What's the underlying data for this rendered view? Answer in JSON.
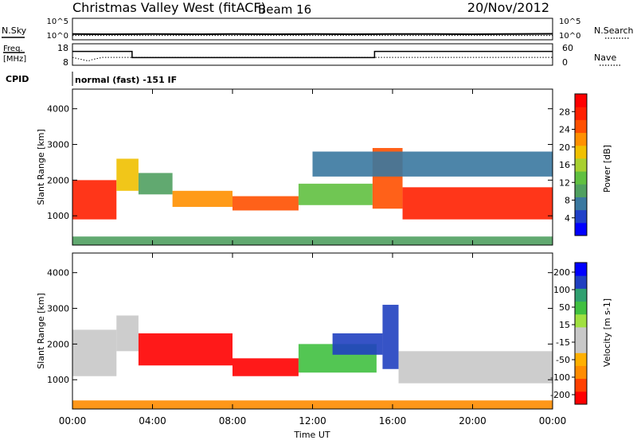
{
  "header": {
    "title": "Christmas Valley West (fitACF)",
    "beam": "Beam 16",
    "date": "20/Nov/2012"
  },
  "left_labels": {
    "nsky": "N.Sky",
    "freq_line1": "Freq.",
    "freq_line2": "[MHz]",
    "cpid": "CPID"
  },
  "right_labels": {
    "nsearch": "N.Search",
    "nave": "Nave"
  },
  "cpid_text": "normal (fast) -151 IF",
  "colors": {
    "power_scale": [
      "#0000ff",
      "#2040c8",
      "#3a78a0",
      "#50a060",
      "#60c040",
      "#a8d030",
      "#f0c000",
      "#ff9000",
      "#ff5000",
      "#ff2000",
      "#ff0000"
    ],
    "velocity_scale": [
      "#ff0000",
      "#ff4000",
      "#ff8c00",
      "#ffb000",
      "#c8c8c8",
      "#c8c8c8",
      "#a0e040",
      "#40c040",
      "#30a070",
      "#2040c0",
      "#0000ff"
    ]
  },
  "chart_data": [
    {
      "type": "line",
      "panel": "noise",
      "left_ticks": [
        "10^5",
        "10^0"
      ],
      "right_ticks": [
        "10^5",
        "10^0"
      ],
      "series": [
        {
          "name": "N.Sky",
          "style": "solid",
          "x": [
            0,
            2,
            4,
            6,
            8,
            10,
            12,
            14,
            16,
            18,
            20,
            22,
            24
          ],
          "y_log10": [
            0.6,
            0.55,
            0.6,
            0.55,
            0.6,
            0.55,
            0.6,
            0.55,
            0.6,
            0.6,
            0.55,
            0.6,
            0.65
          ]
        },
        {
          "name": "N.Search",
          "style": "dotted",
          "x": [
            0,
            24
          ],
          "y_log10": [
            0.25,
            0.25
          ]
        }
      ]
    },
    {
      "type": "line",
      "panel": "frequency",
      "left_ticks": [
        "18",
        "8"
      ],
      "right_ticks": [
        "60",
        "0"
      ],
      "series": [
        {
          "name": "Freq.",
          "style": "solid",
          "x": [
            0,
            2.98,
            2.98,
            15.1,
            15.1,
            24
          ],
          "y": [
            15,
            15,
            11,
            11,
            15,
            15
          ]
        },
        {
          "name": "Nave",
          "style": "dotted",
          "x": [
            0,
            0.3,
            0.8,
            1.0,
            1.5,
            24
          ],
          "y": [
            22,
            18,
            12,
            16,
            22,
            22
          ]
        }
      ]
    },
    {
      "type": "heatmap",
      "panel": "power",
      "title": "Power [dB]",
      "ylabel": "Slant Range [km]",
      "y_ticks": [
        "1000",
        "2000",
        "3000",
        "4000"
      ],
      "xlim": [
        0,
        24
      ],
      "ylim": [
        180,
        4550
      ],
      "colorbar": {
        "label": "Power [dB]",
        "ticks": [
          "4",
          "8",
          "12",
          "16",
          "20",
          "24",
          "28"
        ],
        "range": [
          0,
          32
        ]
      },
      "regions": [
        {
          "x0": 0.0,
          "x1": 2.2,
          "r0": 900,
          "r1": 2000,
          "level": 28
        },
        {
          "x0": 2.2,
          "x1": 3.3,
          "r0": 1700,
          "r1": 2600,
          "level": 20
        },
        {
          "x0": 3.3,
          "x1": 5.0,
          "r0": 1600,
          "r1": 2200,
          "level": 10
        },
        {
          "x0": 5.0,
          "x1": 8.0,
          "r0": 1250,
          "r1": 1700,
          "level": 22
        },
        {
          "x0": 8.0,
          "x1": 11.3,
          "r0": 1150,
          "r1": 1550,
          "level": 26
        },
        {
          "x0": 11.3,
          "x1": 15.0,
          "r0": 1300,
          "r1": 1900,
          "level": 12
        },
        {
          "x0": 15.0,
          "x1": 16.5,
          "r0": 1200,
          "r1": 2900,
          "level": 24
        },
        {
          "x0": 16.5,
          "x1": 24.0,
          "r0": 900,
          "r1": 1800,
          "level": 29
        },
        {
          "x0": 12.0,
          "x1": 24.0,
          "r0": 2100,
          "r1": 2800,
          "level": 6
        },
        {
          "x0": 0.0,
          "x1": 24.0,
          "r0": 180,
          "r1": 420,
          "level": 10
        }
      ]
    },
    {
      "type": "heatmap",
      "panel": "velocity",
      "ylabel": "Slant Range [km]",
      "xlabel": "Time UT",
      "x_ticks": [
        "00:00",
        "04:00",
        "08:00",
        "12:00",
        "16:00",
        "20:00",
        "00:00"
      ],
      "y_ticks": [
        "1000",
        "2000",
        "3000",
        "4000"
      ],
      "xlim": [
        0,
        24
      ],
      "ylim": [
        180,
        4550
      ],
      "colorbar": {
        "label": "Velocity [m s-1]",
        "ticks": [
          "200",
          "100",
          "50",
          "15",
          "-15",
          "-50",
          "-100",
          "-200"
        ]
      },
      "regions": [
        {
          "x0": 0.0,
          "x1": 2.2,
          "r0": 1100,
          "r1": 2400,
          "velocity": 0
        },
        {
          "x0": 2.2,
          "x1": 3.3,
          "r0": 1800,
          "r1": 2800,
          "velocity": 0
        },
        {
          "x0": 3.3,
          "x1": 8.0,
          "r0": 1400,
          "r1": 2300,
          "velocity": -220
        },
        {
          "x0": 8.0,
          "x1": 11.3,
          "r0": 1100,
          "r1": 1600,
          "velocity": -200
        },
        {
          "x0": 11.3,
          "x1": 15.2,
          "r0": 1200,
          "r1": 2000,
          "velocity": 40
        },
        {
          "x0": 13.0,
          "x1": 15.5,
          "r0": 1700,
          "r1": 2300,
          "velocity": 150
        },
        {
          "x0": 15.5,
          "x1": 16.3,
          "r0": 1300,
          "r1": 3100,
          "velocity": 160
        },
        {
          "x0": 16.3,
          "x1": 24.0,
          "r0": 900,
          "r1": 1800,
          "velocity": 0
        },
        {
          "x0": 0.0,
          "x1": 24.0,
          "r0": 180,
          "r1": 420,
          "velocity": -60
        }
      ]
    }
  ]
}
